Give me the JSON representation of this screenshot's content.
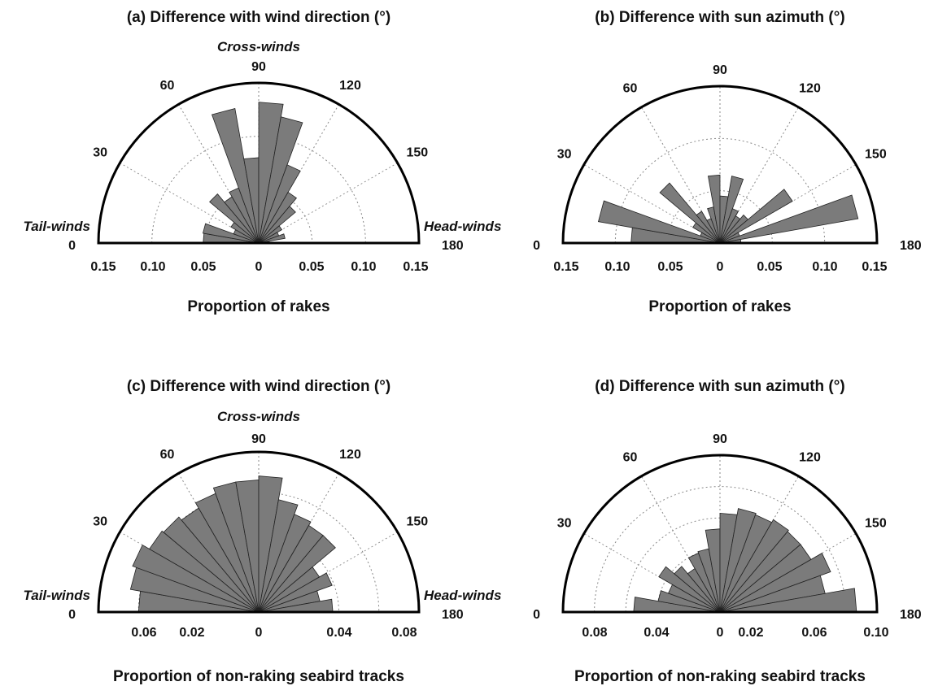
{
  "chart_data": [
    {
      "type": "rose",
      "panel": "a",
      "title": "(a) Difference with wind direction (°)",
      "xlabel": "Proportion of rakes",
      "angle_labels": [
        "0",
        "30",
        "60",
        "90",
        "120",
        "150",
        "180"
      ],
      "annotations": {
        "top": "Cross-winds",
        "left": "Tail-winds",
        "right": "Head-winds"
      },
      "xlim": [
        0,
        0.15
      ],
      "rings": [
        0.05,
        0.1
      ],
      "x_ticks": [
        "0.15",
        "0.10",
        "0.05",
        "0",
        "0.05",
        "0.10",
        "0.15"
      ],
      "bin_width_deg": 10,
      "bins": [
        [
          0,
          10,
          0.052
        ],
        [
          10,
          20,
          0.053
        ],
        [
          20,
          30,
          0.025
        ],
        [
          30,
          40,
          0.03
        ],
        [
          40,
          50,
          0.06
        ],
        [
          50,
          60,
          0.05
        ],
        [
          60,
          70,
          0.055
        ],
        [
          70,
          80,
          0.128
        ],
        [
          80,
          90,
          0.08
        ],
        [
          90,
          100,
          0.132
        ],
        [
          100,
          110,
          0.12
        ],
        [
          110,
          120,
          0.078
        ],
        [
          120,
          130,
          0.055
        ],
        [
          130,
          140,
          0.045
        ],
        [
          140,
          150,
          0.025
        ],
        [
          150,
          160,
          0.02
        ],
        [
          160,
          170,
          0.025
        ],
        [
          170,
          180,
          0.01
        ]
      ]
    },
    {
      "type": "rose",
      "panel": "b",
      "title": "(b) Difference with sun azimuth (°)",
      "xlabel": "Proportion of rakes",
      "angle_labels": [
        "0",
        "30",
        "60",
        "90",
        "120",
        "150",
        "180"
      ],
      "xlim": [
        0,
        0.15
      ],
      "rings": [
        0.05,
        0.1
      ],
      "x_ticks": [
        "0.15",
        "0.10",
        "0.05",
        "0",
        "0.05",
        "0.10",
        "0.15"
      ],
      "bin_width_deg": 10,
      "bins": [
        [
          0,
          10,
          0.085
        ],
        [
          10,
          20,
          0.118
        ],
        [
          20,
          30,
          0.02
        ],
        [
          30,
          40,
          0.03
        ],
        [
          40,
          50,
          0.075
        ],
        [
          50,
          60,
          0.035
        ],
        [
          60,
          70,
          0.025
        ],
        [
          70,
          80,
          0.035
        ],
        [
          80,
          90,
          0.065
        ],
        [
          90,
          100,
          0.045
        ],
        [
          100,
          110,
          0.065
        ],
        [
          110,
          120,
          0.035
        ],
        [
          120,
          130,
          0.03
        ],
        [
          130,
          140,
          0.035
        ],
        [
          140,
          150,
          0.08
        ],
        [
          150,
          160,
          0.02
        ],
        [
          160,
          170,
          0.134
        ],
        [
          170,
          180,
          0.02
        ]
      ]
    },
    {
      "type": "rose",
      "panel": "c",
      "title": "(c) Difference with wind direction (°)",
      "xlabel": "Proportion of non-raking seabird tracks",
      "angle_labels": [
        "0",
        "30",
        "60",
        "90",
        "120",
        "150",
        "180"
      ],
      "annotations": {
        "top": "Cross-winds",
        "left": "Tail-winds",
        "right": "Head-winds"
      },
      "xlim": [
        0,
        0.08
      ],
      "rings": [
        0.04,
        0.06
      ],
      "x_ticks": [
        "0.06",
        "0.02",
        "0",
        "0.04",
        "0.08"
      ],
      "bin_width_deg": 10,
      "bins": [
        [
          0,
          10,
          0.06
        ],
        [
          10,
          20,
          0.065
        ],
        [
          20,
          30,
          0.067
        ],
        [
          30,
          40,
          0.063
        ],
        [
          40,
          50,
          0.062
        ],
        [
          50,
          60,
          0.06
        ],
        [
          60,
          70,
          0.063
        ],
        [
          70,
          80,
          0.066
        ],
        [
          80,
          90,
          0.066
        ],
        [
          90,
          100,
          0.068
        ],
        [
          100,
          110,
          0.057
        ],
        [
          110,
          120,
          0.052
        ],
        [
          120,
          130,
          0.05
        ],
        [
          130,
          140,
          0.05
        ],
        [
          140,
          150,
          0.035
        ],
        [
          150,
          160,
          0.039
        ],
        [
          160,
          170,
          0.031
        ],
        [
          170,
          180,
          0.037
        ]
      ]
    },
    {
      "type": "rose",
      "panel": "d",
      "title": "(d) Difference with sun azimuth (°)",
      "xlabel": "Proportion of non-raking seabird tracks",
      "angle_labels": [
        "0",
        "30",
        "60",
        "90",
        "120",
        "150",
        "180"
      ],
      "xlim": [
        0,
        0.1
      ],
      "rings": [
        0.04,
        0.06,
        0.08
      ],
      "x_ticks": [
        "0.08",
        "0.04",
        "0",
        "0.02",
        "0.06",
        "0.10"
      ],
      "bin_width_deg": 10,
      "bins": [
        [
          0,
          10,
          0.055
        ],
        [
          10,
          20,
          0.04
        ],
        [
          20,
          30,
          0.035
        ],
        [
          30,
          40,
          0.045
        ],
        [
          40,
          50,
          0.038
        ],
        [
          50,
          60,
          0.032
        ],
        [
          60,
          70,
          0.04
        ],
        [
          70,
          80,
          0.041
        ],
        [
          80,
          90,
          0.053
        ],
        [
          90,
          100,
          0.063
        ],
        [
          100,
          110,
          0.067
        ],
        [
          110,
          120,
          0.066
        ],
        [
          120,
          130,
          0.068
        ],
        [
          130,
          140,
          0.067
        ],
        [
          140,
          150,
          0.067
        ],
        [
          150,
          160,
          0.075
        ],
        [
          160,
          170,
          0.068
        ],
        [
          170,
          180,
          0.087
        ]
      ]
    }
  ]
}
